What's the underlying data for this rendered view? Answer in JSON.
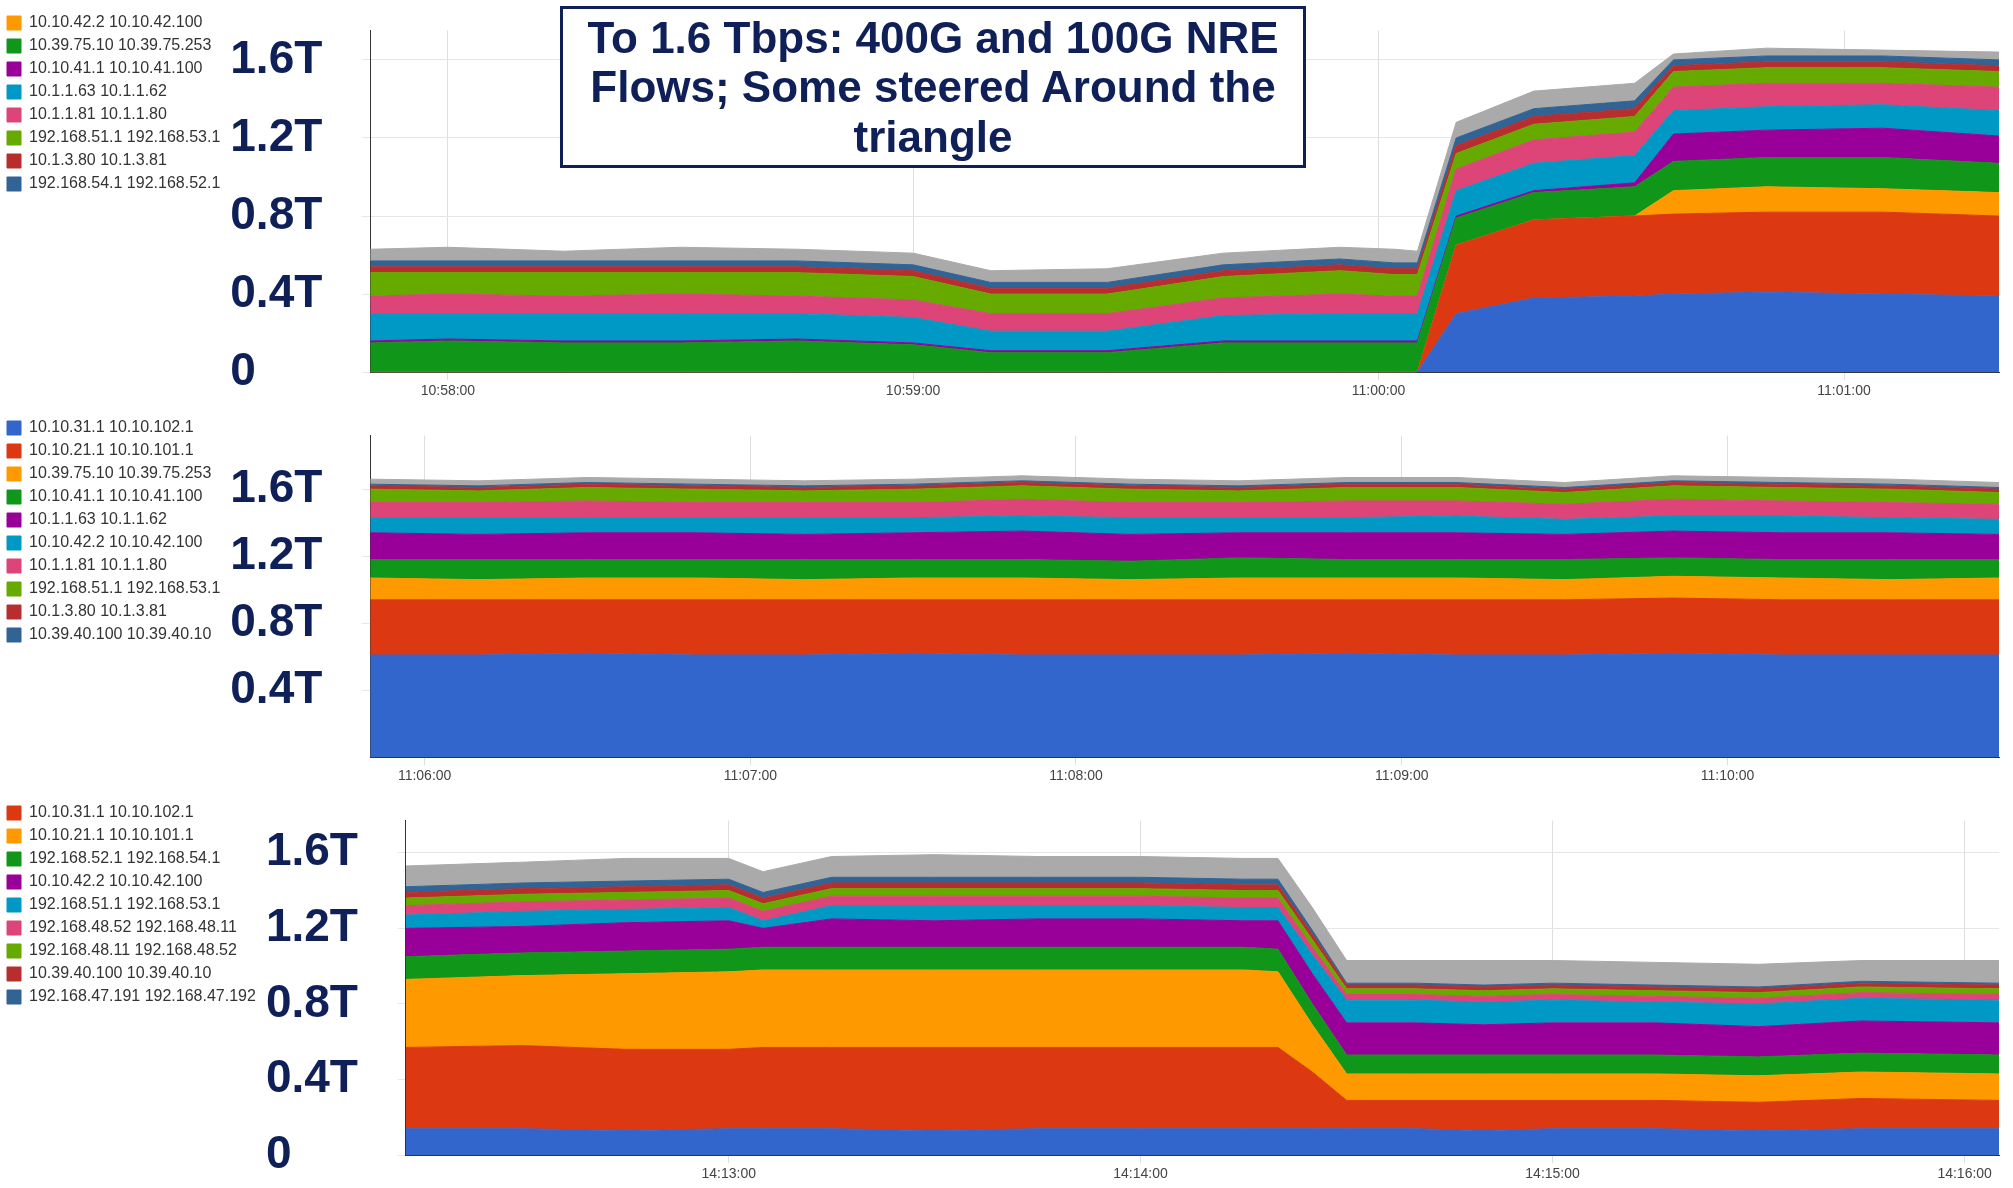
{
  "chart_data": [
    {
      "type": "area",
      "stacked": true,
      "title": "To 1.6 Tbps: 400G and 100G NRE Flows; Some steered Around the triangle",
      "legend": "left",
      "grid": true,
      "x": [
        10.96389,
        10.96667,
        10.97083,
        10.975,
        10.97917,
        10.98333,
        10.98611,
        10.99028,
        10.99444,
        10.99861,
        11.00056,
        11.00139,
        11.00278,
        11.00556,
        11.00917,
        11.01056,
        11.01389,
        11.01806,
        11.02222
      ],
      "xlim": [
        10.96389,
        11.02222
      ],
      "xticks": [
        {
          "value": 10.96667,
          "label": "10:58:00"
        },
        {
          "value": 10.98333,
          "label": "10:59:00"
        },
        {
          "value": 11.0,
          "label": "11:00:00"
        },
        {
          "value": 11.01667,
          "label": "11:01:00"
        }
      ],
      "ylim": [
        0,
        1.75
      ],
      "yticks": [
        0,
        {
          "value": 0.4,
          "label": "0.4T"
        },
        {
          "value": 0.8,
          "label": "0.8T"
        },
        {
          "value": 1.2,
          "label": "1.2T"
        },
        {
          "value": 1.6,
          "label": "1.6T"
        }
      ],
      "series": [
        {
          "color": "#3366cc",
          "values": [
            0,
            0,
            0,
            0,
            0,
            0,
            0,
            0,
            0,
            0,
            0,
            0,
            0.3,
            0.38,
            0.39,
            0.4,
            0.41,
            0.4,
            0.39
          ]
        },
        {
          "color": "#dc3912",
          "values": [
            0,
            0,
            0,
            0,
            0,
            0,
            0,
            0,
            0,
            0,
            0,
            0,
            0.35,
            0.4,
            0.41,
            0.41,
            0.41,
            0.42,
            0.41
          ]
        },
        {
          "name": "10.10.42.2 10.10.42.100",
          "color": "#ff9900",
          "values": [
            0,
            0,
            0,
            0,
            0,
            0,
            0,
            0,
            0,
            0,
            0,
            0,
            0,
            0,
            0,
            0.12,
            0.13,
            0.12,
            0.12
          ]
        },
        {
          "name": "10.39.75.10 10.39.75.253",
          "color": "#109618",
          "values": [
            0.15,
            0.16,
            0.15,
            0.15,
            0.16,
            0.14,
            0.1,
            0.1,
            0.15,
            0.15,
            0.15,
            0.15,
            0.14,
            0.14,
            0.15,
            0.15,
            0.15,
            0.16,
            0.15
          ]
        },
        {
          "name": "10.10.41.1 10.10.41.100",
          "color": "#990099",
          "values": [
            0.01,
            0.01,
            0.01,
            0.01,
            0.01,
            0.01,
            0.01,
            0.01,
            0.01,
            0.01,
            0.01,
            0.01,
            0.01,
            0.01,
            0.02,
            0.14,
            0.14,
            0.15,
            0.14
          ]
        },
        {
          "name": "10.1.1.63 10.1.1.62",
          "color": "#0099c6",
          "values": [
            0.14,
            0.13,
            0.14,
            0.14,
            0.13,
            0.13,
            0.1,
            0.1,
            0.13,
            0.14,
            0.14,
            0.14,
            0.13,
            0.14,
            0.14,
            0.12,
            0.12,
            0.12,
            0.13
          ]
        },
        {
          "name": "10.1.1.81 10.1.1.80",
          "color": "#dd4477",
          "values": [
            0.09,
            0.1,
            0.09,
            0.1,
            0.09,
            0.09,
            0.09,
            0.09,
            0.09,
            0.1,
            0.09,
            0.09,
            0.11,
            0.12,
            0.12,
            0.12,
            0.12,
            0.11,
            0.12
          ]
        },
        {
          "name": "192.168.51.1 192.168.53.1",
          "color": "#66aa00",
          "values": [
            0.12,
            0.11,
            0.12,
            0.11,
            0.12,
            0.12,
            0.1,
            0.1,
            0.11,
            0.12,
            0.11,
            0.11,
            0.08,
            0.08,
            0.08,
            0.08,
            0.08,
            0.08,
            0.08
          ]
        },
        {
          "name": "10.1.3.80 10.1.3.81",
          "color": "#b82e2e",
          "values": [
            0.03,
            0.03,
            0.03,
            0.03,
            0.03,
            0.03,
            0.03,
            0.03,
            0.03,
            0.03,
            0.03,
            0.03,
            0.04,
            0.04,
            0.04,
            0.03,
            0.03,
            0.03,
            0.03
          ]
        },
        {
          "name": "192.168.54.1 192.168.52.1",
          "color": "#316395",
          "values": [
            0.03,
            0.03,
            0.03,
            0.03,
            0.03,
            0.03,
            0.03,
            0.03,
            0.03,
            0.03,
            0.03,
            0.03,
            0.04,
            0.04,
            0.04,
            0.03,
            0.03,
            0.03,
            0.03
          ]
        },
        {
          "color": "#aaaaaa",
          "values": [
            0.06,
            0.07,
            0.05,
            0.07,
            0.06,
            0.06,
            0.06,
            0.07,
            0.06,
            0.06,
            0.07,
            0.06,
            0.08,
            0.09,
            0.09,
            0.03,
            0.04,
            0.03,
            0.04
          ]
        }
      ]
    },
    {
      "type": "area",
      "stacked": true,
      "legend": "left",
      "grid": true,
      "x": [
        11.09722,
        11.10278,
        11.10833,
        11.11389,
        11.11944,
        11.125,
        11.13056,
        11.13611,
        11.14167,
        11.14722,
        11.15278,
        11.15833,
        11.16389,
        11.16944,
        11.175,
        11.18056
      ],
      "xlim": [
        11.09722,
        11.18056
      ],
      "xticks": [
        {
          "value": 11.1,
          "label": "11:06:00"
        },
        {
          "value": 11.11667,
          "label": "11:07:00"
        },
        {
          "value": 11.13333,
          "label": "11:08:00"
        },
        {
          "value": 11.15,
          "label": "11:09:00"
        },
        {
          "value": 11.16667,
          "label": "11:10:00"
        }
      ],
      "ylim": [
        0,
        1.92
      ],
      "yticks": [
        {
          "value": 0.4,
          "label": "0.4T"
        },
        {
          "value": 0.8,
          "label": "0.8T"
        },
        {
          "value": 1.2,
          "label": "1.2T"
        },
        {
          "value": 1.6,
          "label": "1.6T"
        }
      ],
      "series": [
        {
          "name": "10.10.31.1 10.10.102.1",
          "color": "#3366cc",
          "values": [
            0.61,
            0.61,
            0.62,
            0.61,
            0.61,
            0.62,
            0.61,
            0.61,
            0.61,
            0.62,
            0.61,
            0.61,
            0.62,
            0.61,
            0.61,
            0.61
          ]
        },
        {
          "name": "10.10.21.1 10.10.101.1",
          "color": "#dc3912",
          "values": [
            0.33,
            0.33,
            0.32,
            0.33,
            0.33,
            0.32,
            0.33,
            0.33,
            0.33,
            0.32,
            0.33,
            0.33,
            0.33,
            0.33,
            0.33,
            0.33
          ]
        },
        {
          "name": "10.39.75.10 10.39.75.253",
          "color": "#ff9900",
          "values": [
            0.13,
            0.12,
            0.13,
            0.13,
            0.12,
            0.13,
            0.13,
            0.12,
            0.13,
            0.13,
            0.13,
            0.12,
            0.13,
            0.13,
            0.12,
            0.13
          ]
        },
        {
          "name": "10.10.41.1 10.10.41.100",
          "color": "#109618",
          "values": [
            0.11,
            0.12,
            0.11,
            0.11,
            0.12,
            0.11,
            0.11,
            0.11,
            0.12,
            0.11,
            0.11,
            0.12,
            0.11,
            0.11,
            0.12,
            0.11
          ]
        },
        {
          "name": "10.1.1.63 10.1.1.62",
          "color": "#990099",
          "values": [
            0.16,
            0.15,
            0.16,
            0.16,
            0.15,
            0.16,
            0.17,
            0.16,
            0.15,
            0.16,
            0.16,
            0.15,
            0.16,
            0.16,
            0.16,
            0.15
          ]
        },
        {
          "name": "10.10.42.2 10.10.42.100",
          "color": "#0099c6",
          "values": [
            0.09,
            0.1,
            0.09,
            0.09,
            0.1,
            0.09,
            0.09,
            0.1,
            0.09,
            0.09,
            0.1,
            0.09,
            0.09,
            0.1,
            0.09,
            0.09
          ]
        },
        {
          "name": "10.1.1.81 10.1.1.80",
          "color": "#dd4477",
          "values": [
            0.09,
            0.09,
            0.1,
            0.09,
            0.09,
            0.09,
            0.1,
            0.09,
            0.09,
            0.1,
            0.09,
            0.09,
            0.1,
            0.09,
            0.09,
            0.09
          ]
        },
        {
          "name": "192.168.51.1 192.168.53.1",
          "color": "#66aa00",
          "values": [
            0.08,
            0.07,
            0.08,
            0.08,
            0.07,
            0.08,
            0.08,
            0.08,
            0.07,
            0.08,
            0.08,
            0.07,
            0.08,
            0.08,
            0.08,
            0.07
          ]
        },
        {
          "name": "10.1.3.80 10.1.3.81",
          "color": "#b82e2e",
          "values": [
            0.02,
            0.02,
            0.02,
            0.02,
            0.02,
            0.02,
            0.02,
            0.02,
            0.02,
            0.02,
            0.02,
            0.02,
            0.02,
            0.02,
            0.02,
            0.02
          ]
        },
        {
          "name": "10.39.40.100 10.39.40.10",
          "color": "#316395",
          "values": [
            0.01,
            0.01,
            0.01,
            0.01,
            0.01,
            0.01,
            0.01,
            0.01,
            0.01,
            0.01,
            0.01,
            0.01,
            0.01,
            0.01,
            0.01,
            0.01
          ]
        },
        {
          "color": "#aaaaaa",
          "values": [
            0.03,
            0.03,
            0.03,
            0.03,
            0.03,
            0.03,
            0.03,
            0.03,
            0.03,
            0.03,
            0.03,
            0.03,
            0.03,
            0.03,
            0.03,
            0.03
          ]
        }
      ]
    },
    {
      "type": "area",
      "stacked": true,
      "legend": "left",
      "grid": true,
      "x": [
        14.20361,
        14.20833,
        14.2125,
        14.21667,
        14.21806,
        14.22083,
        14.225,
        14.22917,
        14.23333,
        14.2375,
        14.23889,
        14.24028,
        14.24167,
        14.24444,
        14.24722,
        14.25,
        14.25417,
        14.25833,
        14.2625,
        14.26806
      ],
      "xlim": [
        14.20361,
        14.26806
      ],
      "xticks": [
        {
          "value": 14.21667,
          "label": "14:13:00"
        },
        {
          "value": 14.23333,
          "label": "14:14:00"
        },
        {
          "value": 14.25,
          "label": "14:15:00"
        },
        {
          "value": 14.26667,
          "label": "14:16:00"
        }
      ],
      "ylim": [
        0,
        1.77
      ],
      "yticks": [
        0,
        {
          "value": 0.4,
          "label": "0.4T"
        },
        {
          "value": 0.8,
          "label": "0.8T"
        },
        {
          "value": 1.2,
          "label": "1.2T"
        },
        {
          "value": 1.6,
          "label": "1.6T"
        }
      ],
      "series": [
        {
          "color": "#3366cc",
          "values": [
            0.14,
            0.14,
            0.13,
            0.14,
            0.14,
            0.14,
            0.13,
            0.14,
            0.14,
            0.14,
            0.14,
            0.14,
            0.14,
            0.14,
            0.13,
            0.14,
            0.14,
            0.13,
            0.14,
            0.14
          ]
        },
        {
          "name": "10.10.31.1 10.10.102.1",
          "color": "#dc3912",
          "values": [
            0.43,
            0.44,
            0.43,
            0.42,
            0.43,
            0.43,
            0.44,
            0.43,
            0.43,
            0.43,
            0.43,
            0.3,
            0.15,
            0.15,
            0.16,
            0.15,
            0.15,
            0.15,
            0.16,
            0.15
          ]
        },
        {
          "name": "10.10.21.1 10.10.101.1",
          "color": "#ff9900",
          "values": [
            0.36,
            0.37,
            0.4,
            0.41,
            0.41,
            0.41,
            0.41,
            0.41,
            0.41,
            0.41,
            0.4,
            0.25,
            0.14,
            0.14,
            0.14,
            0.14,
            0.14,
            0.14,
            0.14,
            0.14
          ]
        },
        {
          "name": "192.168.52.1 192.168.54.1",
          "color": "#109618",
          "values": [
            0.12,
            0.12,
            0.12,
            0.12,
            0.12,
            0.12,
            0.12,
            0.12,
            0.12,
            0.12,
            0.12,
            0.11,
            0.1,
            0.1,
            0.1,
            0.1,
            0.1,
            0.1,
            0.1,
            0.1
          ]
        },
        {
          "name": "10.10.42.2 10.10.42.100",
          "color": "#990099",
          "values": [
            0.15,
            0.14,
            0.15,
            0.15,
            0.1,
            0.15,
            0.14,
            0.15,
            0.15,
            0.14,
            0.15,
            0.16,
            0.17,
            0.17,
            0.16,
            0.17,
            0.17,
            0.16,
            0.17,
            0.17
          ]
        },
        {
          "name": "192.168.51.1 192.168.53.1",
          "color": "#0099c6",
          "values": [
            0.07,
            0.08,
            0.07,
            0.07,
            0.04,
            0.07,
            0.08,
            0.07,
            0.07,
            0.07,
            0.07,
            0.1,
            0.12,
            0.12,
            0.12,
            0.12,
            0.11,
            0.12,
            0.12,
            0.12
          ]
        },
        {
          "name": "192.168.48.52 192.168.48.11",
          "color": "#dd4477",
          "values": [
            0.05,
            0.05,
            0.05,
            0.05,
            0.05,
            0.05,
            0.05,
            0.05,
            0.05,
            0.05,
            0.05,
            0.04,
            0.03,
            0.03,
            0.03,
            0.03,
            0.03,
            0.03,
            0.03,
            0.03
          ]
        },
        {
          "name": "192.168.48.11 192.168.48.52",
          "color": "#66aa00",
          "values": [
            0.04,
            0.04,
            0.04,
            0.04,
            0.04,
            0.04,
            0.04,
            0.04,
            0.04,
            0.04,
            0.04,
            0.04,
            0.03,
            0.03,
            0.03,
            0.03,
            0.03,
            0.03,
            0.03,
            0.03
          ]
        },
        {
          "name": "10.39.40.100 10.39.40.10",
          "color": "#b82e2e",
          "values": [
            0.03,
            0.03,
            0.03,
            0.03,
            0.03,
            0.03,
            0.03,
            0.03,
            0.03,
            0.03,
            0.03,
            0.03,
            0.02,
            0.02,
            0.02,
            0.02,
            0.02,
            0.02,
            0.02,
            0.02
          ]
        },
        {
          "name": "192.168.47.191 192.168.47.192",
          "color": "#316395",
          "values": [
            0.03,
            0.03,
            0.03,
            0.03,
            0.03,
            0.03,
            0.03,
            0.03,
            0.03,
            0.03,
            0.03,
            0.02,
            0.01,
            0.01,
            0.01,
            0.01,
            0.01,
            0.01,
            0.01,
            0.01
          ]
        },
        {
          "color": "#aaaaaa",
          "values": [
            0.11,
            0.11,
            0.12,
            0.11,
            0.11,
            0.11,
            0.12,
            0.11,
            0.11,
            0.11,
            0.11,
            0.12,
            0.12,
            0.12,
            0.13,
            0.12,
            0.12,
            0.12,
            0.11,
            0.12
          ]
        }
      ]
    }
  ]
}
